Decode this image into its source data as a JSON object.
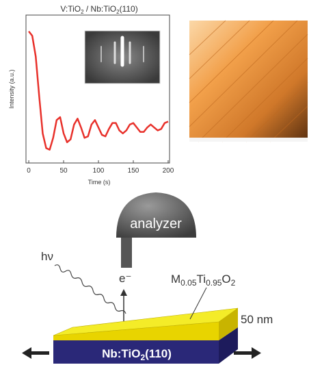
{
  "chart_data": {
    "type": "line",
    "title": [
      "V:TiO",
      "2",
      " / Nb:TiO",
      "2",
      "(110)"
    ],
    "x_label": "Time (s)",
    "y_label": "Intensity (a.u.)",
    "x": [
      0,
      5,
      10,
      15,
      20,
      25,
      30,
      35,
      40,
      45,
      50,
      55,
      60,
      65,
      70,
      75,
      80,
      85,
      90,
      95,
      100,
      105,
      110,
      115,
      120,
      125,
      130,
      135,
      140,
      145,
      150,
      155,
      160,
      165,
      170,
      175,
      180,
      185,
      190,
      195,
      200
    ],
    "series": [
      {
        "color": "#e8302a",
        "values": [
          0.89,
          0.86,
          0.72,
          0.45,
          0.2,
          0.1,
          0.09,
          0.17,
          0.29,
          0.31,
          0.2,
          0.14,
          0.16,
          0.26,
          0.3,
          0.24,
          0.17,
          0.18,
          0.26,
          0.29,
          0.24,
          0.19,
          0.18,
          0.23,
          0.27,
          0.27,
          0.22,
          0.2,
          0.22,
          0.26,
          0.27,
          0.24,
          0.21,
          0.21,
          0.24,
          0.26,
          0.24,
          0.22,
          0.23,
          0.27,
          0.28
        ]
      }
    ],
    "xlim": [
      -4,
      202
    ],
    "ylim": [
      0,
      1
    ],
    "xticks": [
      0,
      50,
      100,
      150,
      200
    ]
  },
  "diagram": {
    "analyzer": "analyzer",
    "photon": "hν",
    "electron": "e⁻",
    "film": [
      "M",
      "0.05",
      "Ti",
      "0.95",
      "O",
      "2"
    ],
    "thickness": "50 nm",
    "substrate": [
      "Nb:TiO",
      "2",
      "(110)"
    ]
  }
}
